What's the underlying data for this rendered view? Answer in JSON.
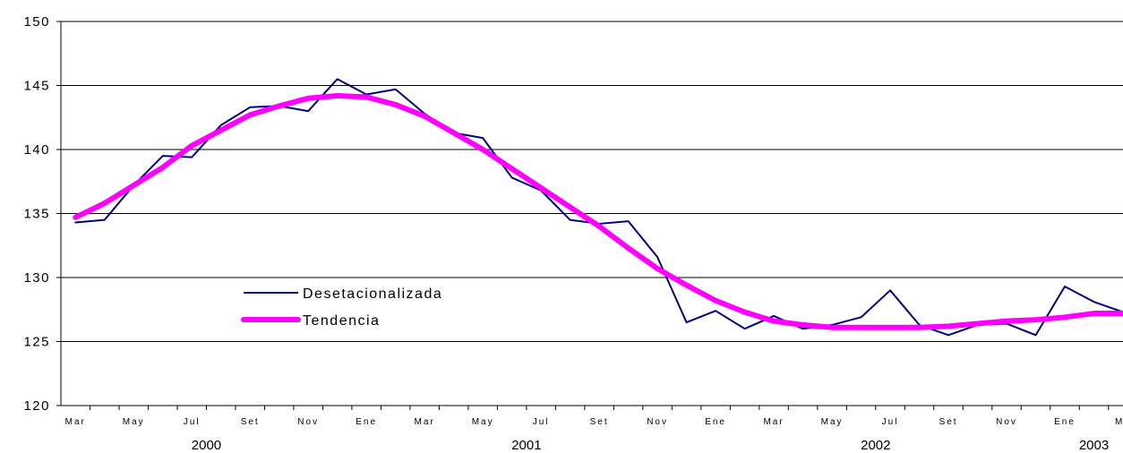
{
  "chart_data": {
    "type": "line",
    "title": "",
    "xlabel": "",
    "ylabel": "",
    "ylim": [
      120,
      150
    ],
    "yticks": [
      120,
      125,
      130,
      135,
      140,
      145,
      150
    ],
    "grid": "horizontal",
    "legend_position": "middle-left",
    "x": [
      "Mar 2000",
      "Abr 2000",
      "May 2000",
      "Jun 2000",
      "Jul 2000",
      "Ago 2000",
      "Set 2000",
      "Oct 2000",
      "Nov 2000",
      "Dic 2000",
      "Ene 2001",
      "Feb 2001",
      "Mar 2001",
      "Abr 2001",
      "May 2001",
      "Jun 2001",
      "Jul 2001",
      "Ago 2001",
      "Set 2001",
      "Oct 2001",
      "Nov 2001",
      "Dic 2001",
      "Ene 2002",
      "Feb 2002",
      "Mar 2002",
      "Abr 2002",
      "May 2002",
      "Jun 2002",
      "Jul 2002",
      "Ago 2002",
      "Set 2002",
      "Oct 2002",
      "Nov 2002",
      "Dic 2002",
      "Ene 2003",
      "Feb 2003",
      "Mar 2003"
    ],
    "x_tick_labels": [
      "Mar",
      "May",
      "Jul",
      "Set",
      "Nov",
      "Ene",
      "Mar",
      "May",
      "Jul",
      "Set",
      "Nov",
      "Ene",
      "Mar",
      "May",
      "Jul",
      "Set",
      "Nov",
      "Ene",
      "Ma"
    ],
    "year_labels": [
      "2000",
      "2001",
      "2002",
      "2003"
    ],
    "series": [
      {
        "name": "Desetacionalizada",
        "color": "#000080",
        "values": [
          134.3,
          134.5,
          137.2,
          139.5,
          139.4,
          141.9,
          143.3,
          143.4,
          143.0,
          145.5,
          144.3,
          144.7,
          142.8,
          141.3,
          140.9,
          137.8,
          136.8,
          134.5,
          134.2,
          134.4,
          131.6,
          126.5,
          127.4,
          126.0,
          127.0,
          126.0,
          126.3,
          126.9,
          129.0,
          126.3,
          125.5,
          126.3,
          126.4,
          125.5,
          129.3,
          128.1,
          127.3
        ]
      },
      {
        "name": "Tendencia",
        "color": "#ff00ff",
        "values": [
          134.7,
          135.8,
          137.2,
          138.6,
          140.3,
          141.5,
          142.7,
          143.4,
          144.0,
          144.2,
          144.1,
          143.5,
          142.6,
          141.3,
          140.0,
          138.5,
          137.0,
          135.5,
          134.0,
          132.3,
          130.7,
          129.4,
          128.2,
          127.3,
          126.6,
          126.3,
          126.1,
          126.1,
          126.1,
          126.1,
          126.2,
          126.4,
          126.6,
          126.7,
          126.9,
          127.2,
          127.2
        ]
      }
    ]
  }
}
